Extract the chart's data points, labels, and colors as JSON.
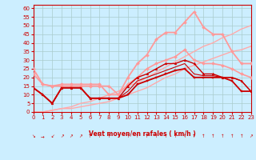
{
  "xlabel": "Vent moyen/en rafales ( km/h )",
  "xlabel_color": "#cc0000",
  "bg_color": "#cceeff",
  "grid_color": "#aacccc",
  "text_color": "#cc0000",
  "ylim": [
    0,
    62
  ],
  "xlim": [
    0,
    23
  ],
  "yticks": [
    0,
    5,
    10,
    15,
    20,
    25,
    30,
    35,
    40,
    45,
    50,
    55,
    60
  ],
  "xticks": [
    0,
    1,
    2,
    3,
    4,
    5,
    6,
    7,
    8,
    9,
    10,
    11,
    12,
    13,
    14,
    15,
    16,
    17,
    18,
    19,
    20,
    21,
    22,
    23
  ],
  "series": [
    {
      "note": "dark red line with small square markers - main wind average line",
      "x": [
        0,
        1,
        2,
        3,
        4,
        5,
        6,
        7,
        8,
        9,
        10,
        11,
        12,
        13,
        14,
        15,
        16,
        17,
        18,
        19,
        20,
        21,
        22,
        23
      ],
      "y": [
        14,
        10,
        5,
        14,
        14,
        14,
        8,
        8,
        8,
        8,
        10,
        16,
        18,
        20,
        22,
        24,
        25,
        20,
        20,
        20,
        20,
        18,
        12,
        12
      ],
      "color": "#cc0000",
      "lw": 1.3,
      "marker": "s",
      "ms": 2.0,
      "zorder": 6
    },
    {
      "note": "dark red line with triangle markers - gusts peak",
      "x": [
        0,
        1,
        2,
        3,
        4,
        5,
        6,
        7,
        8,
        9,
        10,
        11,
        12,
        13,
        14,
        15,
        16,
        17,
        18,
        19,
        20,
        21,
        22,
        23
      ],
      "y": [
        14,
        10,
        5,
        14,
        14,
        14,
        8,
        8,
        8,
        8,
        15,
        20,
        22,
        25,
        28,
        28,
        30,
        28,
        22,
        22,
        20,
        20,
        18,
        12
      ],
      "color": "#cc0000",
      "lw": 1.0,
      "marker": "^",
      "ms": 2.0,
      "zorder": 5
    },
    {
      "note": "dark red plain line",
      "x": [
        0,
        1,
        2,
        3,
        4,
        5,
        6,
        7,
        8,
        9,
        10,
        11,
        12,
        13,
        14,
        15,
        16,
        17,
        18,
        19,
        20,
        21,
        22,
        23
      ],
      "y": [
        14,
        10,
        5,
        14,
        14,
        14,
        8,
        8,
        8,
        8,
        12,
        18,
        20,
        22,
        24,
        26,
        28,
        22,
        21,
        21,
        20,
        20,
        18,
        12
      ],
      "color": "#cc0000",
      "lw": 0.8,
      "marker": null,
      "ms": 0,
      "zorder": 4
    },
    {
      "note": "light pink line with small diamond markers - lower envelope",
      "x": [
        0,
        1,
        2,
        3,
        4,
        5,
        6,
        7,
        8,
        9,
        10,
        11,
        12,
        13,
        14,
        15,
        16,
        17,
        18,
        19,
        20,
        21,
        22,
        23
      ],
      "y": [
        22,
        16,
        15,
        15,
        15,
        15,
        15,
        15,
        15,
        10,
        16,
        20,
        25,
        28,
        30,
        32,
        36,
        30,
        28,
        28,
        27,
        25,
        22,
        20
      ],
      "color": "#ff9999",
      "lw": 1.2,
      "marker": "D",
      "ms": 2.0,
      "zorder": 3
    },
    {
      "note": "light pink line with diamond markers - upper envelope - goes high",
      "x": [
        0,
        1,
        2,
        3,
        4,
        5,
        6,
        7,
        8,
        9,
        10,
        11,
        12,
        13,
        14,
        15,
        16,
        17,
        18,
        19,
        20,
        21,
        22,
        23
      ],
      "y": [
        25,
        16,
        15,
        16,
        16,
        16,
        16,
        16,
        10,
        10,
        20,
        28,
        33,
        42,
        46,
        46,
        52,
        58,
        49,
        45,
        45,
        35,
        28,
        28
      ],
      "color": "#ff9999",
      "lw": 1.3,
      "marker": "D",
      "ms": 2.0,
      "zorder": 3
    },
    {
      "note": "light pink diagonal line from 0 to upper right",
      "x": [
        0,
        1,
        2,
        3,
        4,
        5,
        6,
        7,
        8,
        9,
        10,
        11,
        12,
        13,
        14,
        15,
        16,
        17,
        18,
        19,
        20,
        21,
        22,
        23
      ],
      "y": [
        0,
        0,
        1,
        2,
        3,
        5,
        6,
        8,
        10,
        12,
        15,
        17,
        20,
        23,
        26,
        29,
        32,
        35,
        38,
        40,
        43,
        45,
        48,
        50
      ],
      "color": "#ffaaaa",
      "lw": 1.0,
      "marker": null,
      "ms": 0,
      "zorder": 2
    },
    {
      "note": "light pink diagonal line from 0 to upper right - second one",
      "x": [
        0,
        1,
        2,
        3,
        4,
        5,
        6,
        7,
        8,
        9,
        10,
        11,
        12,
        13,
        14,
        15,
        16,
        17,
        18,
        19,
        20,
        21,
        22,
        23
      ],
      "y": [
        0,
        0,
        1,
        2,
        2,
        3,
        4,
        5,
        6,
        8,
        10,
        12,
        14,
        17,
        20,
        22,
        25,
        27,
        29,
        31,
        33,
        35,
        36,
        38
      ],
      "color": "#ffaaaa",
      "lw": 1.0,
      "marker": null,
      "ms": 0,
      "zorder": 2
    }
  ],
  "wind_arrows": [
    {
      "x": 0,
      "symbol": "↘"
    },
    {
      "x": 1,
      "symbol": "→"
    },
    {
      "x": 2,
      "symbol": "↙"
    },
    {
      "x": 3,
      "symbol": "↗"
    },
    {
      "x": 4,
      "symbol": "↗"
    },
    {
      "x": 5,
      "symbol": "↗"
    },
    {
      "x": 6,
      "symbol": "↑"
    },
    {
      "x": 7,
      "symbol": "↑"
    },
    {
      "x": 8,
      "symbol": "↑"
    },
    {
      "x": 9,
      "symbol": "↑"
    },
    {
      "x": 10,
      "symbol": "↑"
    },
    {
      "x": 11,
      "symbol": "↑"
    },
    {
      "x": 12,
      "symbol": "↑"
    },
    {
      "x": 13,
      "symbol": "↑"
    },
    {
      "x": 14,
      "symbol": "↑"
    },
    {
      "x": 15,
      "symbol": "↑"
    },
    {
      "x": 16,
      "symbol": "↑"
    },
    {
      "x": 17,
      "symbol": "↑"
    },
    {
      "x": 18,
      "symbol": "↑"
    },
    {
      "x": 19,
      "symbol": "↑"
    },
    {
      "x": 20,
      "symbol": "↑"
    },
    {
      "x": 21,
      "symbol": "↑"
    },
    {
      "x": 22,
      "symbol": "↑"
    },
    {
      "x": 23,
      "symbol": "↗"
    }
  ]
}
